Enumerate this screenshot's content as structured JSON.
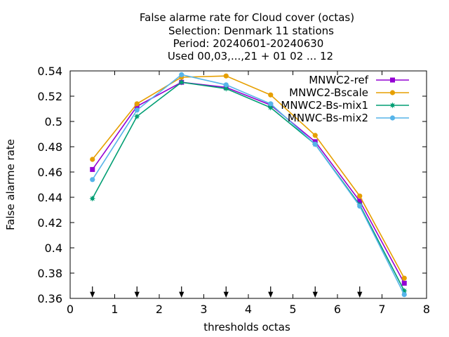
{
  "chart_data": {
    "type": "line",
    "title_lines": [
      "False alarme rate  for Cloud cover (octas)",
      "Selection: Denmark     11 stations",
      "Period: 20240601-20240630",
      "Used 00,03,...,21 + 01 02 ... 12"
    ],
    "xlabel": "thresholds octas",
    "ylabel": "False alarme rate",
    "xlim": [
      0,
      8
    ],
    "ylim": [
      0.36,
      0.54
    ],
    "xticks": [
      0,
      1,
      2,
      3,
      4,
      5,
      6,
      7,
      8
    ],
    "xtick_labels": [
      "0",
      "1",
      "2",
      "3",
      "4",
      "5",
      "6",
      "7",
      "8"
    ],
    "yticks": [
      0.36,
      0.38,
      0.4,
      0.42,
      0.44,
      0.46,
      0.48,
      0.5,
      0.52,
      0.54
    ],
    "ytick_labels": [
      "0.36",
      "0.38",
      "0.4",
      "0.42",
      "0.44",
      "0.46",
      "0.48",
      "0.5",
      "0.52",
      "0.54"
    ],
    "legend_position": "top-right",
    "arrow_markers_x": [
      0.5,
      1.5,
      2.5,
      3.5,
      4.5,
      5.5,
      6.5
    ],
    "x": [
      0.5,
      1.5,
      2.5,
      3.5,
      4.5,
      5.5,
      6.5,
      7.5
    ],
    "series": [
      {
        "name": "MNWC2-ref",
        "color": "#9400d3",
        "marker": "square",
        "values": [
          0.462,
          0.512,
          0.531,
          0.527,
          0.513,
          0.484,
          0.437,
          0.372
        ]
      },
      {
        "name": "MNWC2-Bscale",
        "color": "#e69f00",
        "marker": "circle",
        "values": [
          0.47,
          0.514,
          0.535,
          0.536,
          0.521,
          0.489,
          0.441,
          0.376
        ]
      },
      {
        "name": "MNWC2-Bs-mix1",
        "color": "#009e73",
        "marker": "star",
        "values": [
          0.439,
          0.504,
          0.531,
          0.526,
          0.511,
          0.482,
          0.434,
          0.366
        ]
      },
      {
        "name": "MNWC-Bs-mix2",
        "color": "#56b4e9",
        "marker": "circle",
        "values": [
          0.454,
          0.509,
          0.537,
          0.529,
          0.514,
          0.482,
          0.433,
          0.363
        ]
      }
    ]
  }
}
